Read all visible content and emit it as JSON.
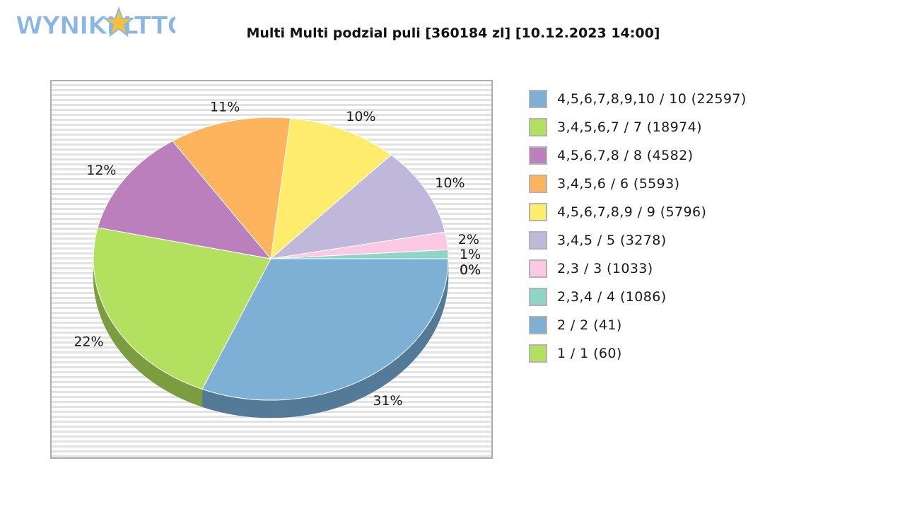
{
  "logo": {
    "text": "WYNIKI LOTTO",
    "colors": {
      "fill": "#8ab6e6",
      "stroke": "#ffffff",
      "star": "#f5c13b"
    }
  },
  "chart_data": {
    "type": "pie",
    "title": "Multi Multi podzial puli [360184 zl] [10.12.2023 14:00]",
    "legend_position": "right",
    "slices": [
      {
        "label": "4,5,6,7,8,9,10 / 10 (22597)",
        "value": 31,
        "pct_label": "31%",
        "color": "#7eb0d6",
        "shadow": "#537a97"
      },
      {
        "label": "3,4,5,6,7 / 7 (18974)",
        "value": 22,
        "pct_label": "22%",
        "color": "#b3e05f",
        "shadow": "#7b9c3f"
      },
      {
        "label": "4,5,6,7,8 / 8 (4582)",
        "value": 12,
        "pct_label": "12%",
        "color": "#bb7fbd",
        "shadow": "#85598a"
      },
      {
        "label": "3,4,5,6 / 6 (5593)",
        "value": 11,
        "pct_label": "11%",
        "color": "#fdb45c",
        "shadow": "#b07d40"
      },
      {
        "label": "4,5,6,7,8,9 / 9 (5796)",
        "value": 10,
        "pct_label": "10%",
        "color": "#ffec6a",
        "shadow": "#b3a54a"
      },
      {
        "label": "3,4,5 / 5 (3278)",
        "value": 10,
        "pct_label": "10%",
        "color": "#bfb8da",
        "shadow": "#858099"
      },
      {
        "label": "2,3 / 3 (1033)",
        "value": 2,
        "pct_label": "2%",
        "color": "#fcc9e4",
        "shadow": "#b08da0"
      },
      {
        "label": "2,3,4 / 4 (1086)",
        "value": 1,
        "pct_label": "1%",
        "color": "#8fd4c7",
        "shadow": "#64948b"
      },
      {
        "label": "2 / 2 (41)",
        "value": 0,
        "pct_label": "0%",
        "color": "#7eb0d6",
        "shadow": "#537a97"
      },
      {
        "label": "1 / 1 (60)",
        "value": 0,
        "pct_label": "0%",
        "color": "#b3e05f",
        "shadow": "#7b9c3f"
      }
    ]
  }
}
